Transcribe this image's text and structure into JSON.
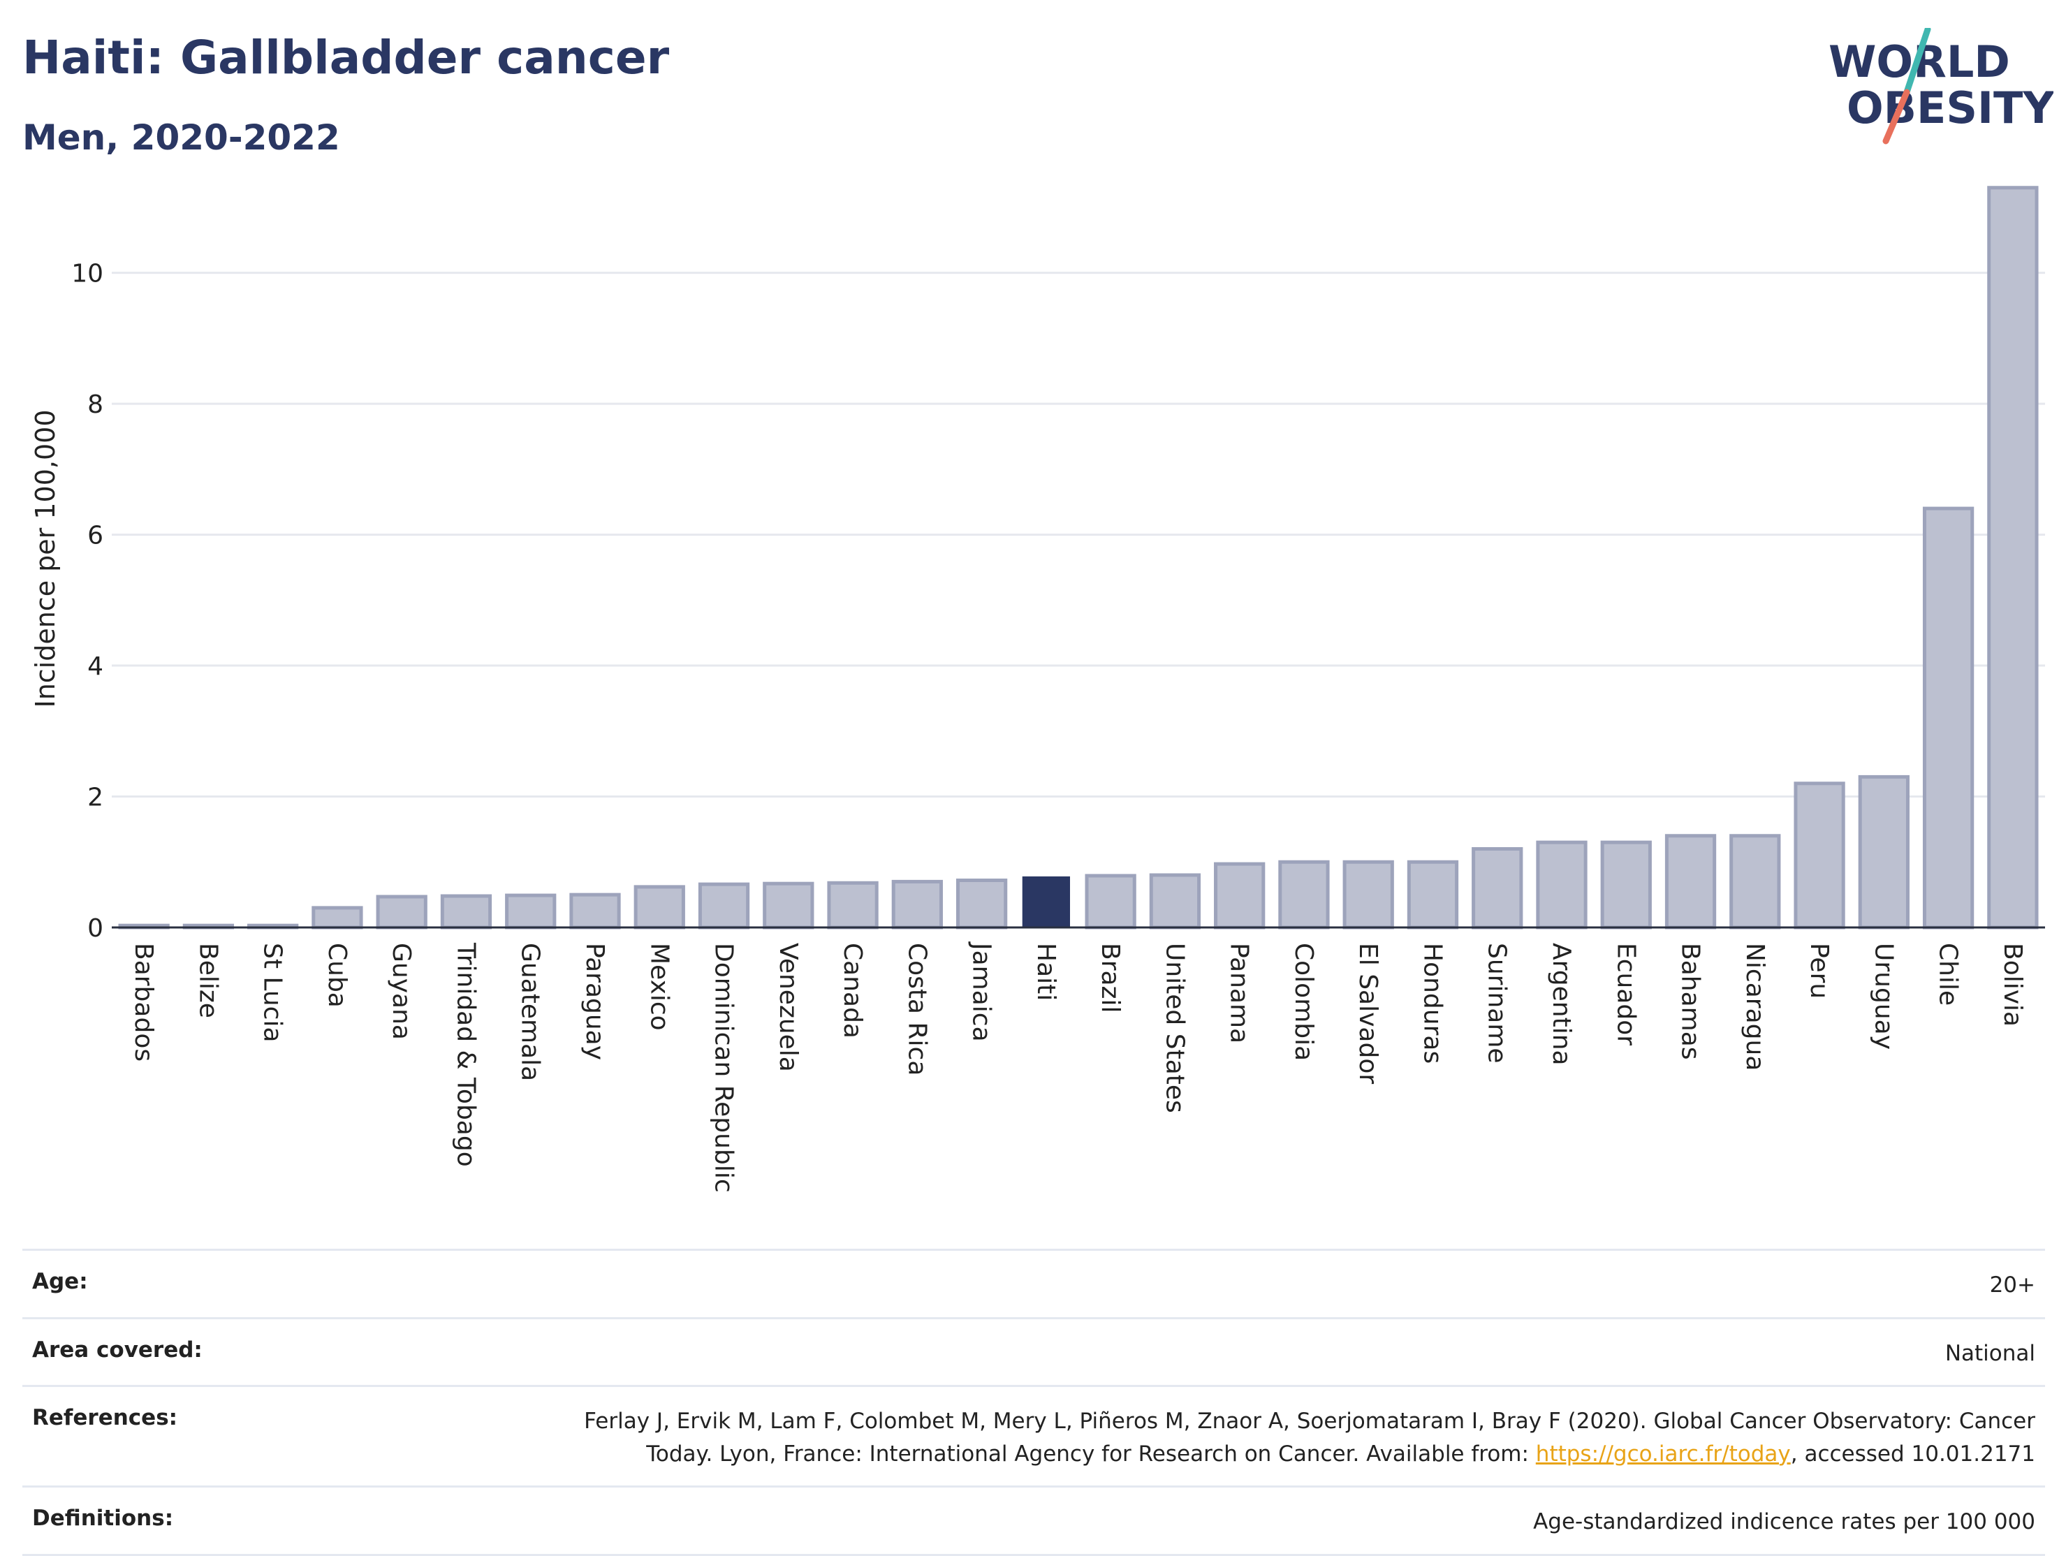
{
  "header": {
    "title": "Haiti: Gallbladder cancer",
    "subtitle": "Men, 2020-2022"
  },
  "logo": {
    "line1": "WORLD",
    "line2": "OBESITY",
    "slash_colors": [
      "#40b7b0",
      "#e8705c"
    ]
  },
  "colors": {
    "highlight": "#2a3763",
    "bar_fill": "#bcc0d0",
    "bar_stroke": "#9da3bb",
    "text": "#222222"
  },
  "chart_data": {
    "type": "bar",
    "ylabel": "Incidence per 100,000",
    "ylim": [
      0,
      11.5
    ],
    "yticks": [
      0,
      2,
      4,
      6,
      8,
      10
    ],
    "grid": true,
    "highlight": "Haiti",
    "categories": [
      "Barbados",
      "Belize",
      "St Lucia",
      "Cuba",
      "Guyana",
      "Trinidad & Tobago",
      "Guatemala",
      "Paraguay",
      "Mexico",
      "Dominican Republic",
      "Venezuela",
      "Canada",
      "Costa Rica",
      "Jamaica",
      "Haiti",
      "Brazil",
      "United States",
      "Panama",
      "Colombia",
      "El Salvador",
      "Honduras",
      "Suriname",
      "Argentina",
      "Ecuador",
      "Bahamas",
      "Nicaragua",
      "Peru",
      "Uruguay",
      "Chile",
      "Bolivia"
    ],
    "values": [
      0.03,
      0.03,
      0.03,
      0.3,
      0.47,
      0.48,
      0.49,
      0.5,
      0.62,
      0.66,
      0.67,
      0.68,
      0.7,
      0.72,
      0.78,
      0.79,
      0.8,
      0.97,
      1.0,
      1.0,
      1.0,
      1.2,
      1.3,
      1.3,
      1.4,
      1.4,
      2.2,
      2.3,
      6.4,
      11.3
    ]
  },
  "info": {
    "age_label": "Age:",
    "age_value": "20+",
    "area_label": "Area covered:",
    "area_value": "National",
    "references_label": "References:",
    "references_text": "Ferlay J, Ervik M, Lam F, Colombet M, Mery L, Piñeros M, Znaor A, Soerjomataram I, Bray F (2020). Global Cancer Observatory: Cancer Today. Lyon, France: International Agency for Research on Cancer. Available from: ",
    "references_link": "https://gco.iarc.fr/today",
    "references_suffix": ", accessed 10.01.2171",
    "definitions_label": "Definitions:",
    "definitions_value": "Age-standardized indicence rates per 100 000"
  }
}
